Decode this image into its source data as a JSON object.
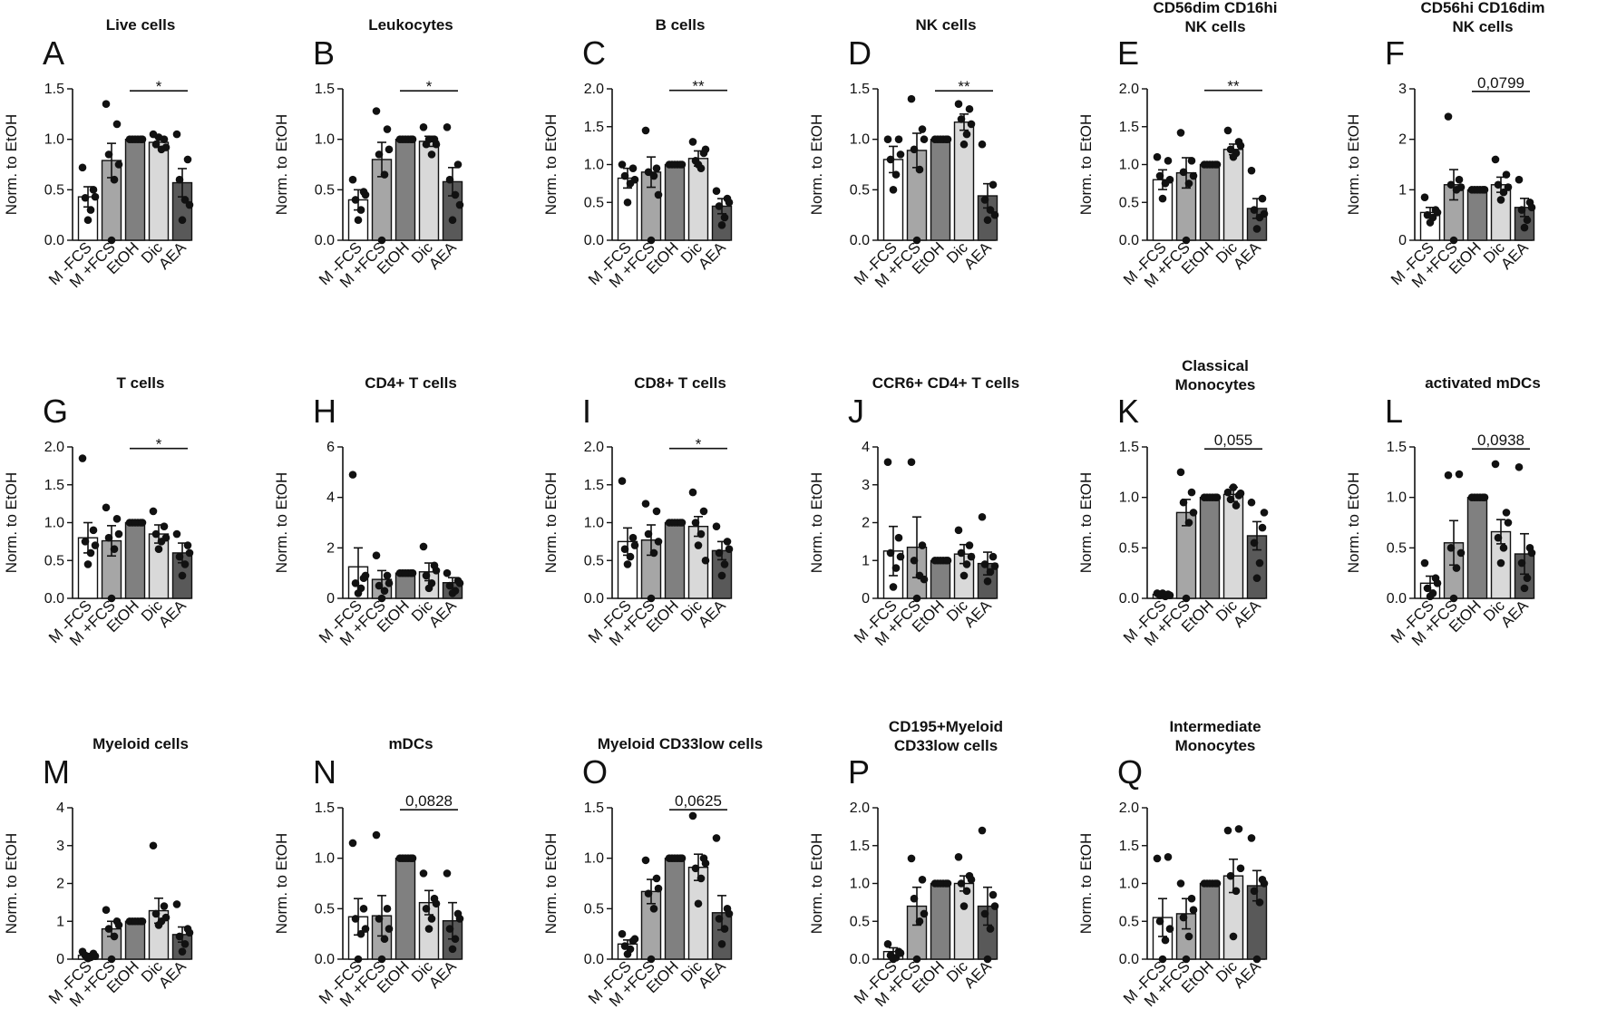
{
  "figure": {
    "ylabel": "Norm. to EtOH",
    "categories": [
      "M -FCS",
      "M +FCS",
      "EtOH",
      "Dic",
      "AEA"
    ],
    "bar_colors": [
      "#ffffff",
      "#a6a6a6",
      "#808080",
      "#d9d9d9",
      "#595959"
    ]
  },
  "chart_data": [
    {
      "letter": "A",
      "title": [
        "Live cells"
      ],
      "type": "bar",
      "ylim": [
        0,
        1.5
      ],
      "ticks": [
        "0.0",
        "0.5",
        "1.0",
        "1.5"
      ],
      "means": [
        0.43,
        0.79,
        1.0,
        0.97,
        0.57
      ],
      "sem": [
        0.1,
        0.17,
        0,
        0.05,
        0.14
      ],
      "points": [
        [
          0.72,
          0.5,
          0.42,
          0.3,
          0.2,
          0.43
        ],
        [
          1.35,
          1.15,
          0.85,
          0.6,
          0.0,
          0.75
        ],
        [
          1.0,
          1.0,
          1.0,
          1.0,
          1.0,
          1.0
        ],
        [
          1.05,
          1.0,
          0.95,
          0.9,
          1.02,
          0.92
        ],
        [
          1.05,
          0.8,
          0.6,
          0.4,
          0.2,
          0.35
        ]
      ],
      "sig": {
        "text": "*",
        "from": 2,
        "to": 4,
        "y": 1.48
      }
    },
    {
      "letter": "B",
      "title": [
        "Leukocytes"
      ],
      "type": "bar",
      "ylim": [
        0,
        1.5
      ],
      "ticks": [
        "0.0",
        "0.5",
        "1.0",
        "1.5"
      ],
      "means": [
        0.4,
        0.8,
        1.0,
        0.98,
        0.58
      ],
      "sem": [
        0.1,
        0.17,
        0,
        0.05,
        0.14
      ],
      "points": [
        [
          0.6,
          0.48,
          0.4,
          0.3,
          0.2,
          0.45
        ],
        [
          1.28,
          1.1,
          0.85,
          0.65,
          0.0,
          0.9
        ],
        [
          1.0,
          1.0,
          1.0,
          1.0,
          1.0,
          1.0
        ],
        [
          1.12,
          1.0,
          0.95,
          0.85,
          1.0,
          0.95
        ],
        [
          1.12,
          0.75,
          0.6,
          0.45,
          0.2,
          0.35
        ]
      ],
      "sig": {
        "text": "*",
        "from": 2,
        "to": 4,
        "y": 1.48
      }
    },
    {
      "letter": "C",
      "title": [
        "B cells"
      ],
      "type": "bar",
      "ylim": [
        0,
        2.0
      ],
      "ticks": [
        "0.0",
        "0.5",
        "1.0",
        "1.5",
        "2.0"
      ],
      "means": [
        0.82,
        0.9,
        1.0,
        1.08,
        0.45
      ],
      "sem": [
        0.13,
        0.2,
        0,
        0.1,
        0.1
      ],
      "points": [
        [
          1.0,
          0.95,
          0.85,
          0.75,
          0.5,
          0.8
        ],
        [
          1.45,
          0.95,
          0.9,
          0.85,
          0.0,
          0.6
        ],
        [
          1.0,
          1.0,
          1.0,
          1.0,
          1.0,
          1.0
        ],
        [
          1.3,
          1.15,
          1.05,
          0.95,
          1.0,
          1.2
        ],
        [
          0.65,
          0.55,
          0.45,
          0.3,
          0.2,
          0.5
        ]
      ],
      "sig": {
        "text": "**",
        "from": 2,
        "to": 4,
        "y": 1.98
      }
    },
    {
      "letter": "D",
      "title": [
        "NK cells"
      ],
      "type": "bar",
      "ylim": [
        0,
        1.5
      ],
      "ticks": [
        "0.0",
        "0.5",
        "1.0",
        "1.5"
      ],
      "means": [
        0.8,
        0.89,
        1.0,
        1.17,
        0.44
      ],
      "sem": [
        0.13,
        0.17,
        0,
        0.08,
        0.12
      ],
      "points": [
        [
          1.0,
          1.0,
          0.8,
          0.65,
          0.5,
          0.85
        ],
        [
          1.4,
          1.1,
          0.9,
          0.7,
          0.0,
          1.0
        ],
        [
          1.0,
          1.0,
          1.0,
          1.0,
          1.0,
          1.0
        ],
        [
          1.35,
          1.3,
          1.2,
          1.05,
          0.95,
          1.15
        ],
        [
          0.95,
          0.55,
          0.4,
          0.3,
          0.2,
          0.25
        ]
      ],
      "sig": {
        "text": "**",
        "from": 2,
        "to": 4,
        "y": 1.48
      }
    },
    {
      "letter": "E",
      "title": [
        "CD56dim CD16hi",
        "NK cells"
      ],
      "type": "bar",
      "ylim": [
        0,
        2.0
      ],
      "ticks": [
        "0.0",
        "0.5",
        "1.0",
        "1.5",
        "2.0"
      ],
      "means": [
        0.8,
        0.89,
        1.0,
        1.2,
        0.42
      ],
      "sem": [
        0.13,
        0.2,
        0,
        0.07,
        0.13
      ],
      "points": [
        [
          1.1,
          1.05,
          0.85,
          0.75,
          0.55,
          0.8
        ],
        [
          1.42,
          1.05,
          0.9,
          0.75,
          0.0,
          0.85
        ],
        [
          1.0,
          1.0,
          1.0,
          1.0,
          1.0,
          1.0
        ],
        [
          1.45,
          1.3,
          1.2,
          1.15,
          1.1,
          1.25
        ],
        [
          0.92,
          0.55,
          0.4,
          0.3,
          0.15,
          0.35
        ]
      ],
      "sig": {
        "text": "**",
        "from": 2,
        "to": 4,
        "y": 1.98
      }
    },
    {
      "letter": "F",
      "title": [
        "CD56hi CD16dim",
        "NK cells"
      ],
      "type": "bar",
      "ylim": [
        0,
        3
      ],
      "ticks": [
        "0",
        "1",
        "2",
        "3"
      ],
      "means": [
        0.55,
        1.1,
        1.0,
        1.1,
        0.65
      ],
      "sem": [
        0.1,
        0.3,
        0,
        0.15,
        0.18
      ],
      "points": [
        [
          0.85,
          0.6,
          0.5,
          0.45,
          0.35,
          0.55
        ],
        [
          2.45,
          1.2,
          1.1,
          1.0,
          0.0,
          1.05
        ],
        [
          1.0,
          1.0,
          1.0,
          1.0,
          1.0,
          1.0
        ],
        [
          1.6,
          1.3,
          1.1,
          0.95,
          0.8,
          1.05
        ],
        [
          1.2,
          0.75,
          0.6,
          0.4,
          0.25,
          0.65
        ]
      ],
      "sig": {
        "text": "0,0799",
        "from": 2,
        "to": 4,
        "y": 2.95
      }
    },
    {
      "letter": "G",
      "title": [
        "T cells"
      ],
      "type": "bar",
      "ylim": [
        0,
        2.0
      ],
      "ticks": [
        "0.0",
        "0.5",
        "1.0",
        "1.5",
        "2.0"
      ],
      "means": [
        0.8,
        0.76,
        1.0,
        0.85,
        0.6
      ],
      "sem": [
        0.2,
        0.2,
        0,
        0.12,
        0.13
      ],
      "points": [
        [
          1.85,
          0.9,
          0.75,
          0.6,
          0.45,
          0.7
        ],
        [
          1.2,
          1.05,
          0.8,
          0.65,
          0.0,
          0.85
        ],
        [
          1.0,
          1.0,
          1.0,
          1.0,
          1.0,
          1.0
        ],
        [
          1.15,
          0.95,
          0.85,
          0.75,
          0.65,
          0.8
        ],
        [
          0.85,
          0.7,
          0.55,
          0.45,
          0.3,
          0.6
        ]
      ],
      "sig": {
        "text": "*",
        "from": 2,
        "to": 4,
        "y": 1.98
      }
    },
    {
      "letter": "H",
      "title": [
        "CD4+ T cells"
      ],
      "type": "bar",
      "ylim": [
        0,
        6
      ],
      "ticks": [
        "0",
        "2",
        "4",
        "6"
      ],
      "means": [
        1.25,
        0.75,
        1.0,
        1.05,
        0.62
      ],
      "sem": [
        0.75,
        0.35,
        0,
        0.35,
        0.2
      ],
      "points": [
        [
          4.9,
          0.8,
          0.6,
          0.4,
          0.2,
          0.9
        ],
        [
          1.7,
          0.9,
          0.5,
          0.3,
          0.0,
          0.6
        ],
        [
          1.0,
          1.0,
          1.0,
          1.0,
          1.0,
          1.0
        ],
        [
          2.05,
          1.3,
          0.9,
          0.6,
          0.4,
          1.1
        ],
        [
          1.0,
          0.7,
          0.5,
          0.3,
          0.2,
          0.6
        ]
      ],
      "sig": null
    },
    {
      "letter": "I",
      "title": [
        "CD8+ T cells"
      ],
      "type": "bar",
      "ylim": [
        0,
        2.0
      ],
      "ticks": [
        "0.0",
        "0.5",
        "1.0",
        "1.5",
        "2.0"
      ],
      "means": [
        0.75,
        0.77,
        1.0,
        0.95,
        0.63
      ],
      "sem": [
        0.18,
        0.2,
        0,
        0.13,
        0.12
      ],
      "points": [
        [
          1.55,
          0.8,
          0.65,
          0.55,
          0.45,
          0.7
        ],
        [
          1.25,
          1.15,
          0.85,
          0.6,
          0.0,
          0.75
        ],
        [
          1.0,
          1.0,
          1.0,
          1.0,
          1.0,
          1.0
        ],
        [
          1.4,
          1.15,
          1.0,
          0.85,
          0.7,
          0.5
        ],
        [
          0.95,
          0.75,
          0.6,
          0.45,
          0.3,
          0.65
        ]
      ],
      "sig": {
        "text": "*",
        "from": 2,
        "to": 4,
        "y": 1.98
      }
    },
    {
      "letter": "J",
      "title": [
        "CCR6+ CD4+ T cells"
      ],
      "type": "bar",
      "ylim": [
        0,
        4
      ],
      "ticks": [
        "0",
        "1",
        "2",
        "3",
        "4"
      ],
      "means": [
        1.25,
        1.35,
        1.0,
        1.17,
        0.92
      ],
      "sem": [
        0.65,
        0.8,
        0,
        0.25,
        0.3
      ],
      "points": [
        [
          3.6,
          1.6,
          1.2,
          0.8,
          0.3,
          1.1
        ],
        [
          3.6,
          1.4,
          1.0,
          0.6,
          0.0,
          0.5
        ],
        [
          1.0,
          1.0,
          1.0,
          1.0,
          1.0,
          1.0
        ],
        [
          1.8,
          1.4,
          1.2,
          0.9,
          0.6,
          1.1
        ],
        [
          2.15,
          1.1,
          0.9,
          0.7,
          0.45,
          0.85
        ]
      ],
      "sig": null
    },
    {
      "letter": "K",
      "title": [
        "Classical",
        "Monocytes"
      ],
      "type": "bar",
      "ylim": [
        0,
        1.5
      ],
      "ticks": [
        "0.0",
        "0.5",
        "1.0",
        "1.5"
      ],
      "means": [
        0.04,
        0.85,
        1.0,
        1.03,
        0.62
      ],
      "sem": [
        0.01,
        0.13,
        0,
        0.07,
        0.14
      ],
      "points": [
        [
          0.05,
          0.04,
          0.03,
          0.02,
          0.05,
          0.03
        ],
        [
          1.25,
          1.05,
          0.95,
          0.75,
          0.0,
          0.85
        ],
        [
          1.0,
          1.0,
          1.0,
          1.0,
          1.0,
          1.0
        ],
        [
          1.05,
          1.02,
          0.98,
          0.92,
          1.1,
          1.04
        ],
        [
          0.95,
          0.7,
          0.55,
          0.35,
          0.2,
          0.85
        ]
      ],
      "sig": {
        "text": "0,055",
        "from": 2,
        "to": 4,
        "y": 1.48
      }
    },
    {
      "letter": "L",
      "title": [
        "activated mDCs"
      ],
      "type": "bar",
      "ylim": [
        0,
        1.5
      ],
      "ticks": [
        "0.0",
        "0.5",
        "1.0",
        "1.5"
      ],
      "means": [
        0.15,
        0.55,
        1.0,
        0.66,
        0.44
      ],
      "sem": [
        0.07,
        0.22,
        0,
        0.12,
        0.2
      ],
      "points": [
        [
          0.35,
          0.2,
          0.1,
          0.05,
          0.02,
          0.15
        ],
        [
          1.22,
          1.23,
          0.5,
          0.3,
          0.0,
          0.45
        ],
        [
          1.0,
          1.0,
          1.0,
          1.0,
          1.0,
          1.0
        ],
        [
          1.33,
          0.85,
          0.6,
          0.5,
          0.35,
          0.75
        ],
        [
          1.3,
          0.5,
          0.35,
          0.2,
          0.1,
          0.45
        ]
      ],
      "sig": {
        "text": "0,0938",
        "from": 2,
        "to": 4,
        "y": 1.48
      }
    },
    {
      "letter": "M",
      "title": [
        "Myeloid cells"
      ],
      "type": "bar",
      "ylim": [
        0,
        4
      ],
      "ticks": [
        "0",
        "1",
        "2",
        "3",
        "4"
      ],
      "means": [
        0.1,
        0.8,
        1.0,
        1.28,
        0.65
      ],
      "sem": [
        0.05,
        0.2,
        0,
        0.33,
        0.2
      ],
      "points": [
        [
          0.2,
          0.15,
          0.1,
          0.05,
          0.02,
          0.08
        ],
        [
          1.3,
          1.0,
          0.8,
          0.6,
          0.0,
          0.9
        ],
        [
          1.0,
          1.0,
          1.0,
          1.0,
          1.0,
          1.0
        ],
        [
          3.0,
          1.4,
          1.2,
          1.0,
          0.9,
          1.1
        ],
        [
          1.45,
          0.8,
          0.6,
          0.4,
          0.2,
          0.7
        ]
      ],
      "sig": null
    },
    {
      "letter": "N",
      "title": [
        "mDCs"
      ],
      "type": "bar",
      "ylim": [
        0,
        1.5
      ],
      "ticks": [
        "0.0",
        "0.5",
        "1.0",
        "1.5"
      ],
      "means": [
        0.42,
        0.43,
        1.0,
        0.56,
        0.38
      ],
      "sem": [
        0.18,
        0.2,
        0,
        0.12,
        0.18
      ],
      "points": [
        [
          1.15,
          0.5,
          0.4,
          0.25,
          0.0,
          0.3
        ],
        [
          1.23,
          0.5,
          0.4,
          0.2,
          0.0,
          0.3
        ],
        [
          1.0,
          1.0,
          1.0,
          1.0,
          1.0,
          1.0
        ],
        [
          0.85,
          0.6,
          0.5,
          0.4,
          0.3,
          0.55
        ],
        [
          0.85,
          0.45,
          0.3,
          0.2,
          0.1,
          0.4
        ]
      ],
      "sig": {
        "text": "0,0828",
        "from": 2,
        "to": 4,
        "y": 1.48
      }
    },
    {
      "letter": "O",
      "title": [
        "Myeloid CD33low cells"
      ],
      "type": "bar",
      "ylim": [
        0,
        1.5
      ],
      "ticks": [
        "0.0",
        "0.5",
        "1.0",
        "1.5"
      ],
      "means": [
        0.15,
        0.67,
        1.0,
        0.91,
        0.46
      ],
      "sem": [
        0.04,
        0.12,
        0,
        0.13,
        0.17
      ],
      "points": [
        [
          0.25,
          0.18,
          0.13,
          0.1,
          0.05,
          0.2
        ],
        [
          0.98,
          0.8,
          0.65,
          0.5,
          0.0,
          0.7
        ],
        [
          1.0,
          1.0,
          1.0,
          1.0,
          1.0,
          1.0
        ],
        [
          1.42,
          1.0,
          0.9,
          0.8,
          0.55,
          0.95
        ],
        [
          1.2,
          0.5,
          0.4,
          0.3,
          0.15,
          0.45
        ]
      ],
      "sig": {
        "text": "0,0625",
        "from": 2,
        "to": 4,
        "y": 1.48
      }
    },
    {
      "letter": "P",
      "title": [
        "CD195+Myeloid",
        "CD33low cells"
      ],
      "type": "bar",
      "ylim": [
        0,
        2.0
      ],
      "ticks": [
        "0.0",
        "0.5",
        "1.0",
        "1.5",
        "2.0"
      ],
      "means": [
        0.1,
        0.7,
        1.0,
        1.0,
        0.7
      ],
      "sem": [
        0.05,
        0.25,
        0,
        0.1,
        0.25
      ],
      "points": [
        [
          0.2,
          0.1,
          0.05,
          0.02,
          0.0,
          0.08
        ],
        [
          1.33,
          1.05,
          0.8,
          0.5,
          0.0,
          0.6
        ],
        [
          1.0,
          1.0,
          1.0,
          1.0,
          1.0,
          1.0
        ],
        [
          1.35,
          1.1,
          1.0,
          0.9,
          0.7,
          1.05
        ],
        [
          1.7,
          0.85,
          0.6,
          0.4,
          0.0,
          0.7
        ]
      ],
      "sig": null
    },
    {
      "letter": "Q",
      "title": [
        "Intermediate",
        "Monocytes"
      ],
      "type": "bar",
      "ylim": [
        0,
        2.0
      ],
      "ticks": [
        "0.0",
        "0.5",
        "1.0",
        "1.5",
        "2.0"
      ],
      "means": [
        0.55,
        0.6,
        1.0,
        1.1,
        0.97
      ],
      "sem": [
        0.25,
        0.2,
        0,
        0.22,
        0.2
      ],
      "points": [
        [
          1.33,
          1.35,
          0.5,
          0.25,
          0.0,
          0.4
        ],
        [
          1.0,
          0.8,
          0.55,
          0.3,
          0.0,
          0.65
        ],
        [
          1.0,
          1.0,
          1.0,
          1.0,
          1.0,
          1.0
        ],
        [
          1.7,
          1.72,
          1.1,
          0.9,
          0.3,
          1.2
        ],
        [
          1.6,
          1.05,
          0.9,
          0.75,
          0.0,
          1.0
        ]
      ],
      "sig": null
    }
  ]
}
